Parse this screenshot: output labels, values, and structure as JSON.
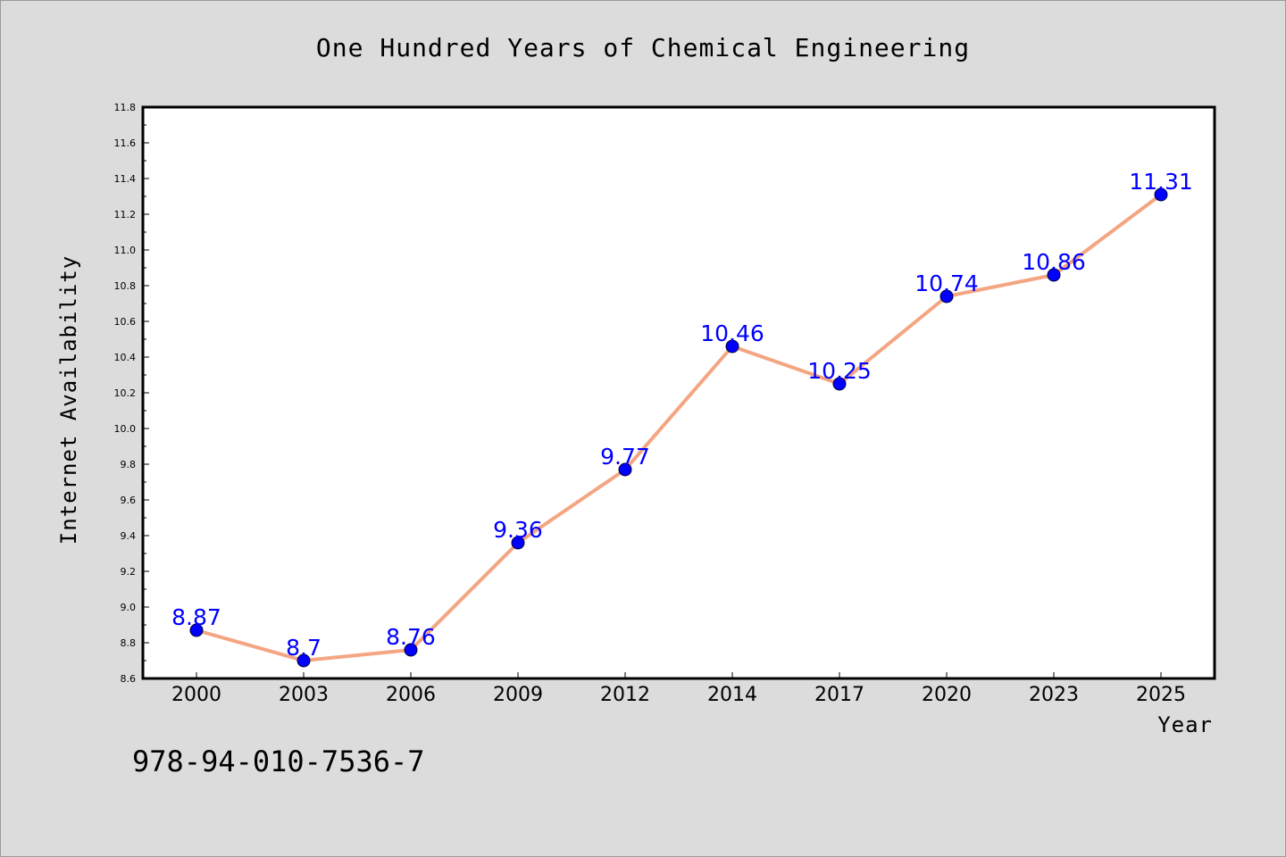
{
  "chart_data": {
    "type": "line",
    "title": "One Hundred Years of Chemical Engineering",
    "xlabel": "Year",
    "ylabel": "Internet Availability",
    "categories": [
      "2000",
      "2003",
      "2006",
      "2009",
      "2012",
      "2014",
      "2017",
      "2020",
      "2023",
      "2025"
    ],
    "series": [
      {
        "values": [
          8.87,
          8.7,
          8.76,
          9.36,
          9.77,
          10.46,
          10.25,
          10.74,
          10.86,
          11.31
        ]
      }
    ],
    "data_labels": [
      "8.87",
      "8.7",
      "8.76",
      "9.36",
      "9.77",
      "10.46",
      "10.25",
      "10.74",
      "10.86",
      "11.31"
    ],
    "ylim": [
      8.6,
      11.8
    ],
    "yticks": [
      "8.6",
      "8.8",
      "9.0",
      "9.2",
      "9.4",
      "9.6",
      "9.8",
      "10.0",
      "10.2",
      "10.4",
      "10.6",
      "10.8",
      "11.0",
      "11.2",
      "11.4",
      "11.6",
      "11.8"
    ],
    "grid": false,
    "legend": "none",
    "line_color": "#f4a582",
    "marker_color": "#0000ff",
    "label_color": "#0000ff",
    "background": "#dcdcdc",
    "plot_background": "#ffffff"
  },
  "footer": {
    "isbn": "978-94-010-7536-7"
  }
}
